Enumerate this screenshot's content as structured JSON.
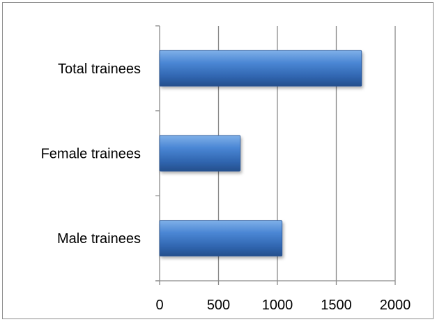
{
  "chart_data": {
    "type": "bar",
    "orientation": "horizontal",
    "categories": [
      "Male trainees",
      "Female trainees",
      "Total trainees"
    ],
    "values": [
      1040,
      685,
      1715
    ],
    "xlim": [
      0,
      2000
    ],
    "xticks": [
      0,
      500,
      1000,
      1500,
      2000
    ],
    "tick_labels": [
      "0",
      "500",
      "1000",
      "1500",
      "2000"
    ],
    "title": "",
    "xlabel": "",
    "ylabel": "",
    "grid": true,
    "legend": "none",
    "bar_color": "#3f78c4"
  }
}
